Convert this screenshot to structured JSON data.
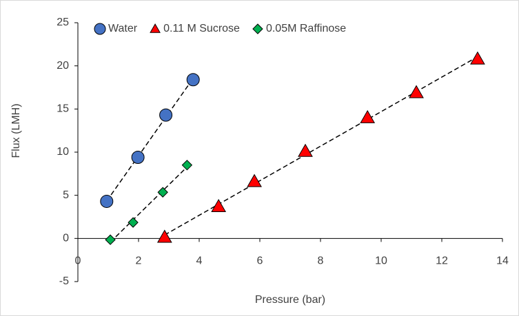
{
  "chart_data": {
    "type": "scatter",
    "x_label": "Pressure (bar)",
    "y_label": "Flux (LMH)",
    "xlim": [
      0,
      14
    ],
    "xticks": [
      0,
      2,
      4,
      6,
      8,
      10,
      12,
      14
    ],
    "ylim": [
      -5,
      25
    ],
    "yticks": [
      -5,
      0,
      5,
      10,
      15,
      20,
      25
    ],
    "trendline": true,
    "series": [
      {
        "name": "Water",
        "color": "#4472c4",
        "marker": "circle",
        "x": [
          0.95,
          1.98,
          2.9,
          3.8
        ],
        "values": [
          4.3,
          9.4,
          14.3,
          18.4
        ]
      },
      {
        "name": "0.11 M Sucrose",
        "color": "#ff0000",
        "marker": "triangle",
        "x": [
          2.86,
          4.64,
          5.82,
          7.5,
          9.55,
          11.16,
          13.18
        ],
        "values": [
          0.15,
          3.7,
          6.6,
          10.1,
          14.0,
          16.9,
          20.8
        ]
      },
      {
        "name": "0.05M Raffinose",
        "color": "#00b050",
        "marker": "diamond",
        "x": [
          1.07,
          1.82,
          2.8,
          3.6
        ],
        "values": [
          -0.15,
          1.85,
          5.35,
          8.5
        ]
      }
    ]
  }
}
